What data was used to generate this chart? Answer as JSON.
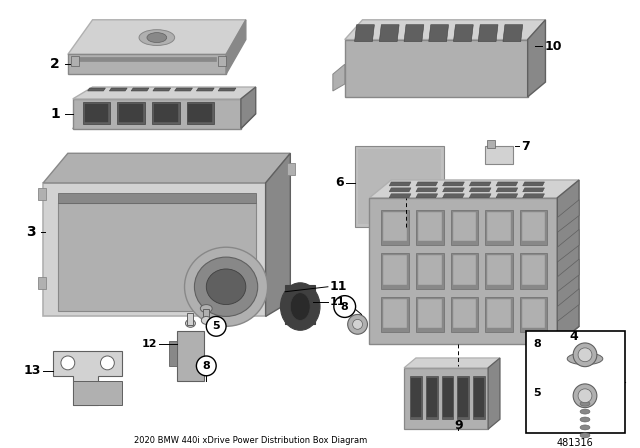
{
  "title": "2020 BMW 440i xDrive Power Distribution Box Diagram",
  "background_color": "#ffffff",
  "pc_light": "#d2d2d2",
  "pc_mid": "#b0b0b0",
  "pc_dark": "#888888",
  "pc_darker": "#606060",
  "pc_darkest": "#404040",
  "line_color": "#000000",
  "diagram_id": "481316",
  "fig_w": 6.4,
  "fig_h": 4.48,
  "dpi": 100
}
